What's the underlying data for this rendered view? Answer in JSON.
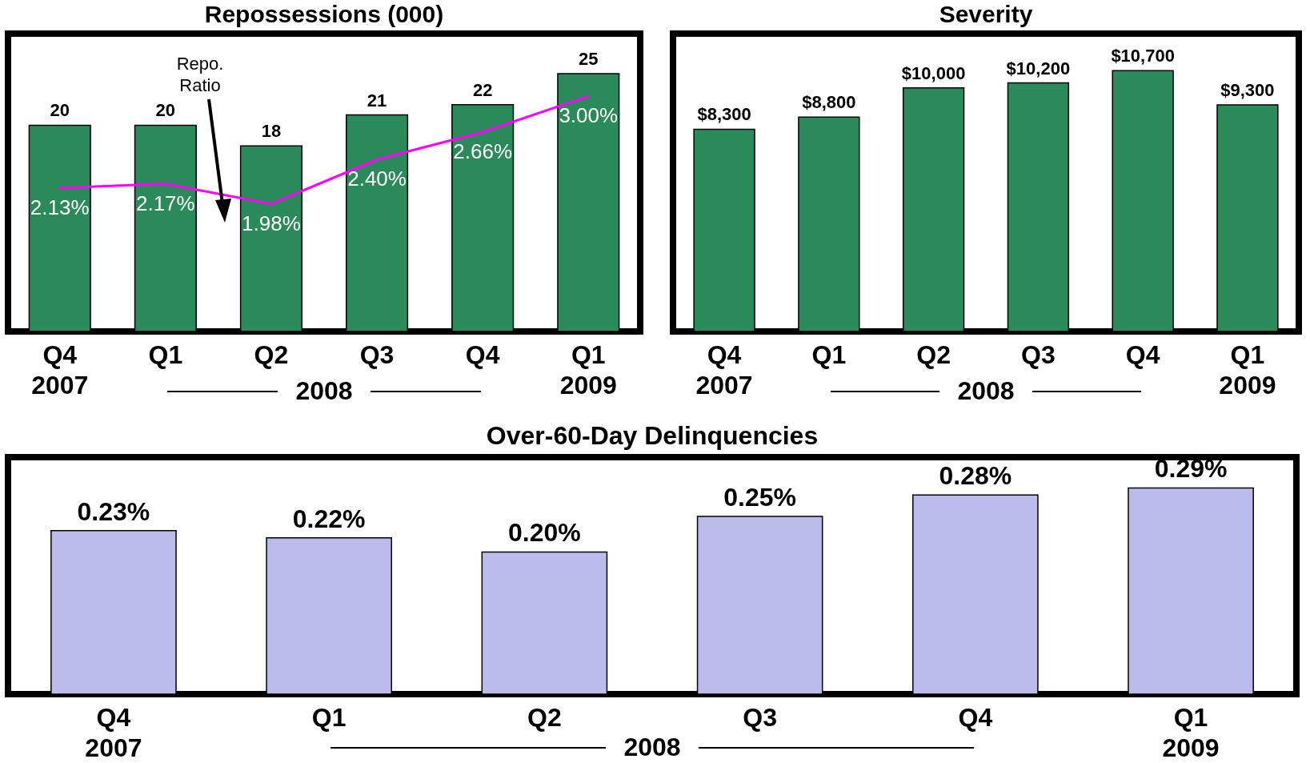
{
  "chart_data": [
    {
      "type": "bar",
      "title": "Repossessions (000)",
      "categories": [
        "Q4\n2007",
        "Q1",
        "Q2",
        "Q3",
        "Q4",
        "Q1\n2009"
      ],
      "series": [
        {
          "type": "bar",
          "color": "#2a8a5a",
          "values": [
            20,
            20,
            18,
            21,
            22,
            25
          ],
          "value_labels": [
            "20",
            "20",
            "18",
            "21",
            "22",
            "25"
          ]
        },
        {
          "type": "line",
          "axis": "y2",
          "color": "#ff00ff",
          "values": [
            2.13,
            2.17,
            1.98,
            2.4,
            2.66,
            3.0
          ],
          "value_labels": [
            "2.13%",
            "2.17%",
            "1.98%",
            "2.40%",
            "2.66%",
            "3.00%"
          ]
        }
      ],
      "annotations": [
        "Repo. Ratio",
        "2008"
      ]
    },
    {
      "type": "bar",
      "title": "Severity",
      "categories": [
        "Q4\n2007",
        "Q1",
        "Q2",
        "Q3",
        "Q4",
        "Q1\n2009"
      ],
      "series": [
        {
          "type": "bar",
          "color": "#2a8a5a",
          "values": [
            8300,
            8800,
            10000,
            10200,
            10700,
            9300
          ],
          "value_labels": [
            "$8,300",
            "$8,800",
            "$10,000",
            "$10,200",
            "$10,700",
            "$9,300"
          ]
        }
      ],
      "annotations": [
        "2008"
      ]
    },
    {
      "type": "bar",
      "title": "Over-60-Day Delinquencies",
      "categories": [
        "Q4\n2007",
        "Q1",
        "Q2",
        "Q3",
        "Q4",
        "Q1\n2009"
      ],
      "series": [
        {
          "type": "bar",
          "color": "#bcbcec",
          "values": [
            0.23,
            0.22,
            0.2,
            0.25,
            0.28,
            0.29
          ],
          "value_labels": [
            "0.23%",
            "0.22%",
            "0.20%",
            "0.25%",
            "0.28%",
            "0.29%"
          ]
        }
      ],
      "annotations": [
        "2008"
      ]
    }
  ]
}
